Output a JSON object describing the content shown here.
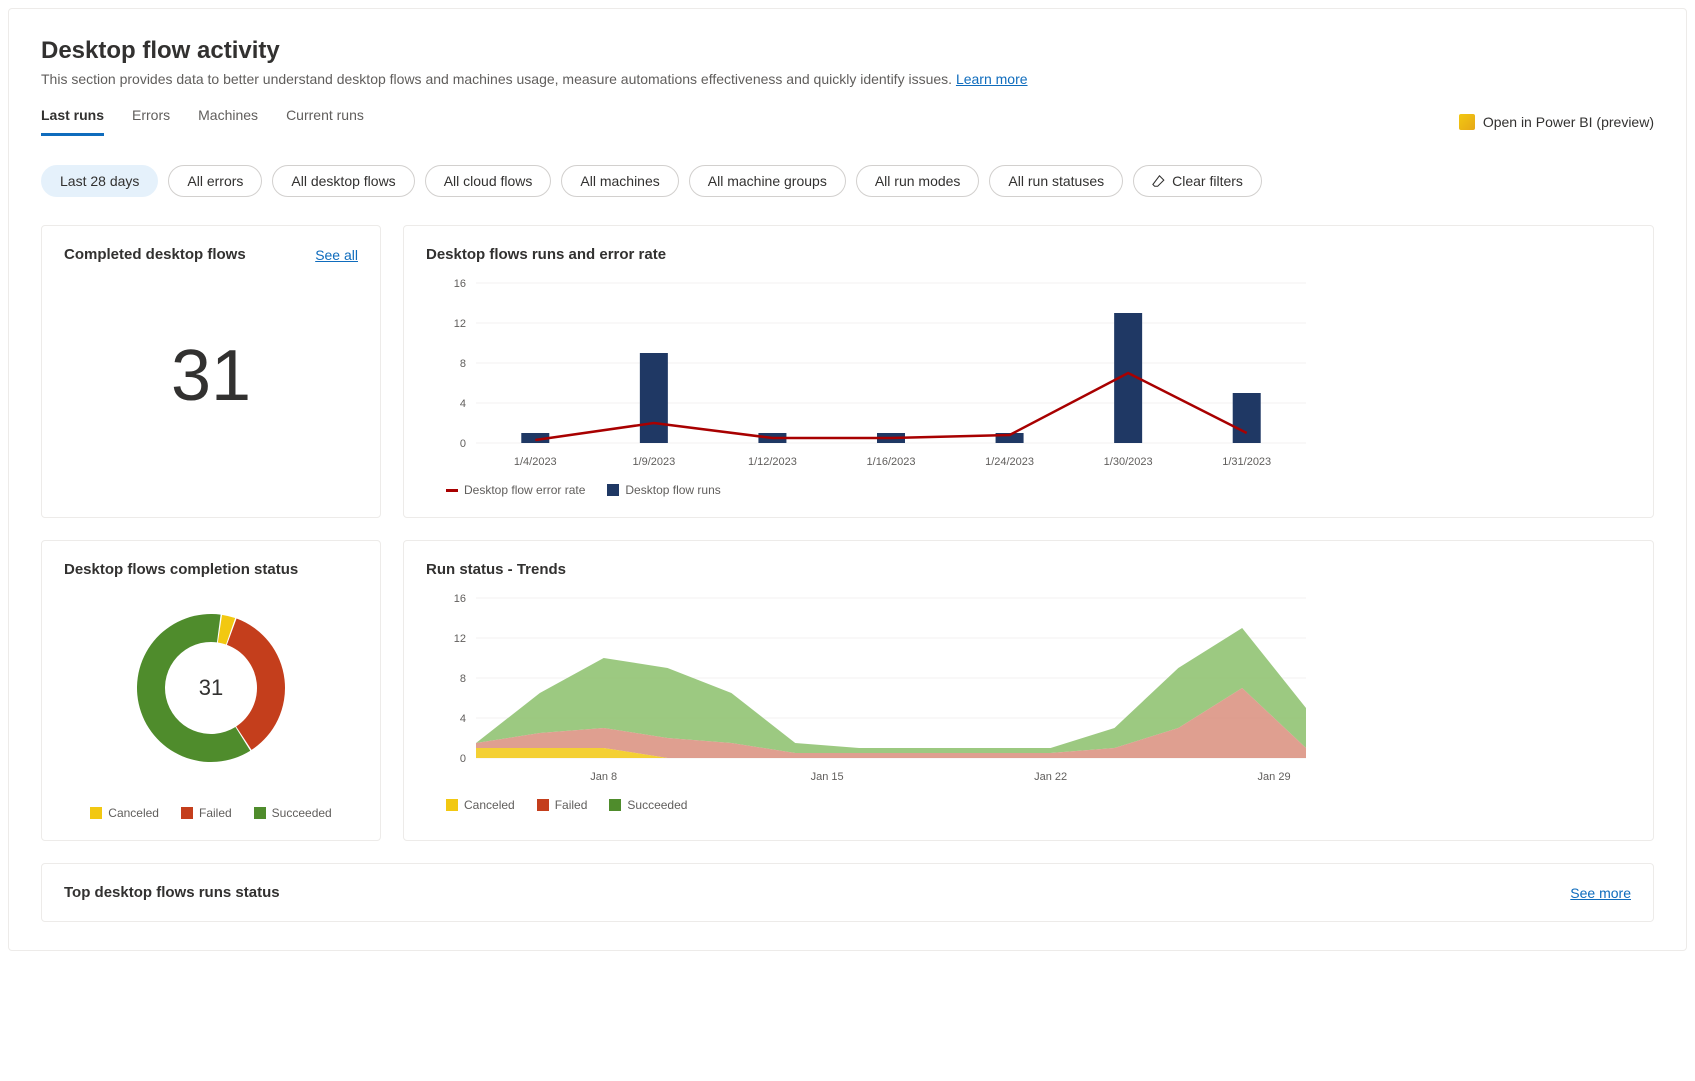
{
  "header": {
    "title": "Desktop flow activity",
    "subtitle": "This section provides data to better understand desktop flows and machines usage, measure automations effectiveness and quickly identify issues.",
    "learn_more": "Learn more"
  },
  "tabs": {
    "items": [
      "Last runs",
      "Errors",
      "Machines",
      "Current runs"
    ],
    "active_index": 0,
    "powerbi": "Open in Power BI (preview)"
  },
  "filters": {
    "pills": [
      "Last 28 days",
      "All errors",
      "All desktop flows",
      "All cloud flows",
      "All machines",
      "All machine groups",
      "All run modes",
      "All run statuses"
    ],
    "active_index": 0,
    "clear": "Clear filters"
  },
  "completed_card": {
    "title": "Completed desktop flows",
    "see_all": "See all",
    "value": "31"
  },
  "runs_chart": {
    "title": "Desktop flows runs and error rate",
    "categories": [
      "1/4/2023",
      "1/9/2023",
      "1/12/2023",
      "1/16/2023",
      "1/24/2023",
      "1/30/2023",
      "1/31/2023"
    ],
    "bar_values": [
      1,
      9,
      1,
      1,
      1,
      13,
      5
    ],
    "line_values": [
      0.3,
      2,
      0.5,
      0.5,
      0.8,
      7,
      1
    ],
    "y_ticks": [
      0,
      4,
      8,
      12,
      16
    ],
    "bar_color": "#1f3864",
    "line_color": "#a80000",
    "grid_color": "#f3f2f1",
    "legend": [
      {
        "label": "Desktop flow error rate",
        "color": "#a80000",
        "type": "line"
      },
      {
        "label": "Desktop flow runs",
        "color": "#1f3864",
        "type": "square"
      }
    ]
  },
  "completion_status": {
    "title": "Desktop flows completion status",
    "center_value": "31",
    "segments": [
      {
        "label": "Canceled",
        "value": 1,
        "color": "#f2c811"
      },
      {
        "label": "Failed",
        "value": 11,
        "color": "#c43e1c"
      },
      {
        "label": "Succeeded",
        "value": 19,
        "color": "#4f8c2c"
      }
    ]
  },
  "trends_chart": {
    "title": "Run status - Trends",
    "x_labels": [
      "Jan 8",
      "Jan 15",
      "Jan 22",
      "Jan 29"
    ],
    "y_ticks": [
      0,
      4,
      8,
      12,
      16
    ],
    "colors": {
      "canceled": "#f2c811",
      "failed": "#d98e7d",
      "succeeded": "#8bbf6b"
    },
    "series": {
      "canceled": [
        1,
        1,
        1,
        0,
        0,
        0,
        0,
        0,
        0,
        0,
        0,
        0,
        0,
        0
      ],
      "failed": [
        0.5,
        1.5,
        2,
        2,
        1.5,
        0.5,
        0.5,
        0.5,
        0.5,
        0.5,
        1,
        3,
        7,
        1
      ],
      "succeeded": [
        0,
        4,
        7,
        7,
        5,
        1,
        0.5,
        0.5,
        0.5,
        0.5,
        2,
        6,
        6,
        4
      ]
    },
    "legend": [
      {
        "label": "Canceled",
        "color": "#f2c811"
      },
      {
        "label": "Failed",
        "color": "#c43e1c"
      },
      {
        "label": "Succeeded",
        "color": "#4f8c2c"
      }
    ]
  },
  "bottom": {
    "title": "Top desktop flows runs status",
    "see_more": "See more"
  }
}
